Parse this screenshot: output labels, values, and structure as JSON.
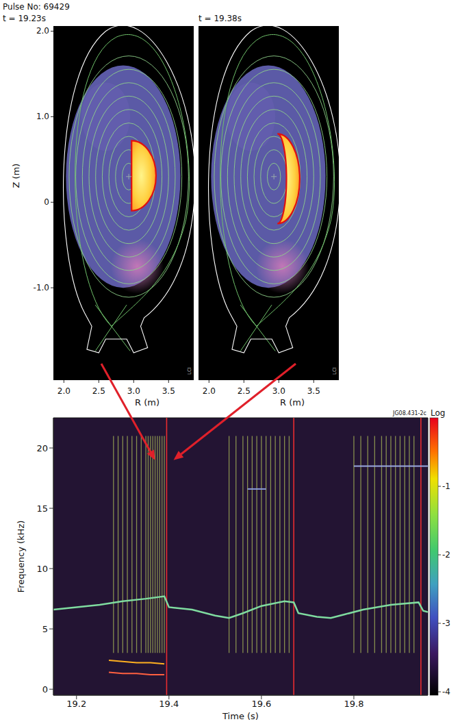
{
  "header": {
    "pulse": "Pulse No: 69429",
    "tag": "LCI"
  },
  "panels": [
    {
      "time": "t = 19.23s",
      "arrow_to": {
        "time": 19.37,
        "frequency": 19
      }
    },
    {
      "time": "t = 19.38s",
      "arrow_to": {
        "time": 19.41,
        "frequency": 19
      }
    }
  ],
  "panel_axes": {
    "xlabel": "R (m)",
    "ylabel": "Z (m)",
    "xlim": [
      1.85,
      3.86
    ],
    "xticks": [
      {
        "value": 2,
        "label": "2.0"
      },
      2.5,
      {
        "value": 3,
        "label": "3.0"
      },
      3.5
    ],
    "ylim": [
      -2.08,
      2.06
    ],
    "yticks": [
      {
        "value": 2,
        "label": "2.0"
      },
      {
        "value": 1,
        "label": "1.0"
      },
      0,
      {
        "value": -1,
        "label": "-1.0"
      }
    ]
  },
  "chart_data": {
    "type": "spectrogram",
    "tag": "JG08.431-2c",
    "xlabel": "Time (s)",
    "ylabel": "Frequency (kHz)",
    "xlim": [
      19.15,
      19.96
    ],
    "ylim": [
      -0.5,
      22.5
    ],
    "xticks": [
      19.2,
      19.4,
      19.6,
      19.8
    ],
    "yticks": [
      0,
      5,
      10,
      15,
      20
    ],
    "series": [
      {
        "color": "#7fdca0",
        "x": [
          19.15,
          19.2,
          19.25,
          19.3,
          19.35,
          19.39,
          19.4,
          19.45,
          19.5,
          19.53,
          19.56,
          19.6,
          19.65,
          19.67,
          19.68,
          19.72,
          19.75,
          19.78,
          19.82,
          19.88,
          19.94,
          19.95,
          19.96
        ],
        "values": [
          6.6,
          6.8,
          7.0,
          7.3,
          7.5,
          7.7,
          6.8,
          6.6,
          6.1,
          5.9,
          6.3,
          6.9,
          7.3,
          7.2,
          6.3,
          6.0,
          5.9,
          6.2,
          6.6,
          7.0,
          7.2,
          6.5,
          6.4
        ]
      },
      {
        "color": "#ffb020",
        "x": [
          19.27,
          19.3,
          19.33,
          19.36,
          19.39
        ],
        "values": [
          2.4,
          2.3,
          2.2,
          2.2,
          2.1
        ]
      },
      {
        "color": "#ff6040",
        "x": [
          19.27,
          19.3,
          19.33,
          19.36,
          19.39
        ],
        "values": [
          1.4,
          1.3,
          1.3,
          1.2,
          1.2
        ]
      },
      {
        "color": "#8a9ad8",
        "x": [
          19.57,
          19.61
        ],
        "values": [
          16.6,
          16.6
        ]
      },
      {
        "color": "#9aa8e0",
        "x": [
          19.8,
          19.96
        ],
        "values": [
          18.5,
          18.5
        ]
      }
    ],
    "bursts": {
      "color": "#c8e060",
      "frequency_range": [
        3,
        21
      ],
      "times": [
        19.28,
        19.29,
        19.3,
        19.31,
        19.32,
        19.33,
        19.34,
        19.35,
        19.355,
        19.36,
        19.365,
        19.37,
        19.375,
        19.38,
        19.385,
        19.39,
        19.53,
        19.545,
        19.56,
        19.57,
        19.58,
        19.59,
        19.6,
        19.61,
        19.62,
        19.63,
        19.64,
        19.65,
        19.66,
        19.8,
        19.815,
        19.83,
        19.845,
        19.86,
        19.87,
        19.88,
        19.89,
        19.9,
        19.91,
        19.92,
        19.93
      ]
    },
    "crashes": {
      "color": "#ff3030",
      "times": [
        19.395,
        19.67,
        19.945
      ]
    },
    "colorbar": {
      "label": "Log",
      "range": [
        -4.05,
        0
      ],
      "ticks": [
        -1,
        -2,
        -3,
        -4
      ]
    }
  }
}
